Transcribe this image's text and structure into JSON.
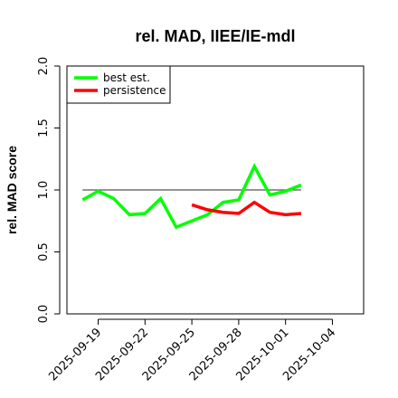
{
  "chart_data": {
    "type": "line",
    "title": "rel. MAD, IIEE/IE-mdl",
    "xlabel": "",
    "ylabel": "rel. MAD score",
    "xlim": [
      "2025-09-17",
      "2025-10-06"
    ],
    "ylim": [
      0.0,
      2.0
    ],
    "grid": false,
    "legend_position": "top-left",
    "x_ticks": [
      "2025-09-19",
      "2025-09-22",
      "2025-09-25",
      "2025-09-28",
      "2025-10-01",
      "2025-10-04"
    ],
    "y_ticks": [
      "0.0",
      "0.5",
      "1.0",
      "1.5",
      "2.0"
    ],
    "reference_line": {
      "y": 1.0,
      "x_from": "2025-09-18",
      "x_to": "2025-10-02",
      "color": "#555555"
    },
    "series": [
      {
        "name": "best est.",
        "color": "#00ff00",
        "x": [
          "2025-09-18",
          "2025-09-19",
          "2025-09-20",
          "2025-09-21",
          "2025-09-22",
          "2025-09-23",
          "2025-09-24",
          "2025-09-25",
          "2025-09-26",
          "2025-09-27",
          "2025-09-28",
          "2025-09-29",
          "2025-09-30",
          "2025-10-01",
          "2025-10-02"
        ],
        "values": [
          0.92,
          0.99,
          0.93,
          0.8,
          0.81,
          0.93,
          0.7,
          0.75,
          0.8,
          0.9,
          0.92,
          1.19,
          0.96,
          0.99,
          1.04
        ]
      },
      {
        "name": "persistence",
        "color": "#ff0000",
        "x": [
          "2025-09-25",
          "2025-09-26",
          "2025-09-27",
          "2025-09-28",
          "2025-09-29",
          "2025-09-30",
          "2025-10-01",
          "2025-10-02"
        ],
        "values": [
          0.88,
          0.84,
          0.82,
          0.81,
          0.9,
          0.82,
          0.8,
          0.81
        ]
      }
    ]
  }
}
